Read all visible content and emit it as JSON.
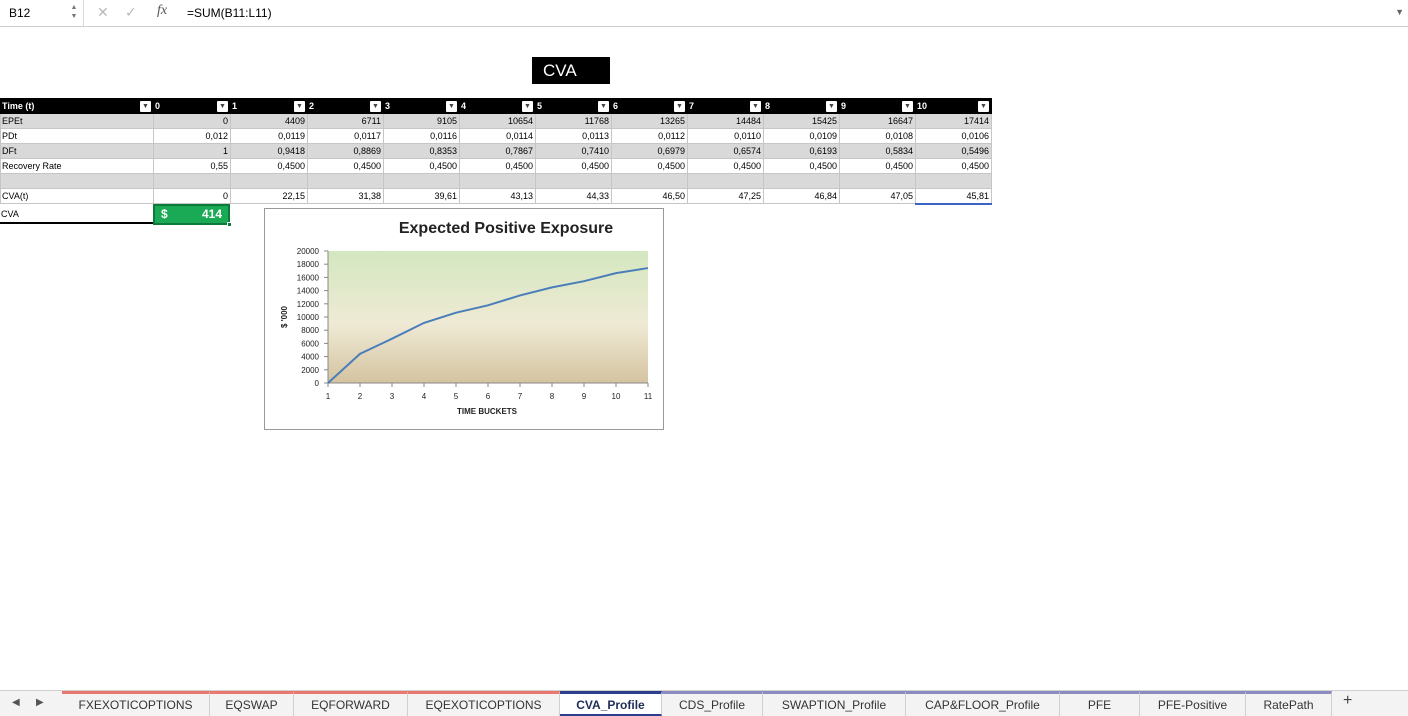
{
  "formula_bar": {
    "cell_ref": "B12",
    "formula": "=SUM(B11:L11)",
    "fx_label": "fx",
    "cancel_glyph": "✕",
    "confirm_glyph": "✓"
  },
  "title": "CVA",
  "table": {
    "header_label": "Time (t)",
    "header_values": [
      "0",
      "1",
      "2",
      "3",
      "4",
      "5",
      "6",
      "7",
      "8",
      "9",
      "10"
    ],
    "rows": [
      {
        "label": "EPEt",
        "values": [
          "0",
          "4409",
          "6711",
          "9105",
          "10654",
          "11768",
          "13265",
          "14484",
          "15425",
          "16647",
          "17414"
        ]
      },
      {
        "label": "PDt",
        "values": [
          "0,012",
          "0,0119",
          "0,0117",
          "0,0116",
          "0,0114",
          "0,0113",
          "0,0112",
          "0,0110",
          "0,0109",
          "0,0108",
          "0,0106"
        ]
      },
      {
        "label": "DFt",
        "values": [
          "1",
          "0,9418",
          "0,8869",
          "0,8353",
          "0,7867",
          "0,7410",
          "0,6979",
          "0,6574",
          "0,6193",
          "0,5834",
          "0,5496"
        ]
      },
      {
        "label": "Recovery Rate",
        "values": [
          "0,55",
          "0,4500",
          "0,4500",
          "0,4500",
          "0,4500",
          "0,4500",
          "0,4500",
          "0,4500",
          "0,4500",
          "0,4500",
          "0,4500"
        ]
      }
    ],
    "cva_t": {
      "label": "CVA(t)",
      "values": [
        "0",
        "22,15",
        "31,38",
        "39,61",
        "43,13",
        "44,33",
        "46,50",
        "47,25",
        "46,84",
        "47,05",
        "45,81"
      ]
    },
    "cva_total": {
      "label": "CVA",
      "currency": "$",
      "value": "414"
    }
  },
  "chart_data": {
    "type": "line",
    "title": "Expected Positive Exposure",
    "xlabel": "TIME BUCKETS",
    "ylabel": "$ '000",
    "x": [
      1,
      2,
      3,
      4,
      5,
      6,
      7,
      8,
      9,
      10,
      11
    ],
    "series": [
      {
        "values": [
          0,
          4409,
          6711,
          9105,
          10654,
          11768,
          13265,
          14484,
          15425,
          16647,
          17414
        ],
        "color": "#4a7ebb"
      }
    ],
    "y_ticks": [
      0,
      2000,
      4000,
      6000,
      8000,
      10000,
      12000,
      14000,
      16000,
      18000,
      20000
    ],
    "ylim": [
      0,
      20000
    ],
    "xlim": [
      1,
      11
    ],
    "grid": false,
    "legend": "none",
    "plot_background": "gradient green-to-tan"
  },
  "sheet_tabs": {
    "tabs": [
      {
        "label": "FXEXOTICOPTIONS",
        "color": "#e8786e",
        "active": false
      },
      {
        "label": "EQSWAP",
        "color": "#e8786e",
        "active": false
      },
      {
        "label": "EQFORWARD",
        "color": "#e8786e",
        "active": false
      },
      {
        "label": "EQEXOTICOPTIONS",
        "color": "#e8786e",
        "active": false
      },
      {
        "label": "CVA_Profile",
        "color": "#2b3f8f",
        "active": true
      },
      {
        "label": "CDS_Profile",
        "color": "#8a8cbf",
        "active": false
      },
      {
        "label": "SWAPTION_Profile",
        "color": "#8a8cbf",
        "active": false
      },
      {
        "label": "CAP&FLOOR_Profile",
        "color": "#8a8cbf",
        "active": false
      },
      {
        "label": "PFE",
        "color": "#8a8cbf",
        "active": false
      },
      {
        "label": "PFE-Positive",
        "color": "#8a8cbf",
        "active": false
      },
      {
        "label": "RatePath",
        "color": "#8a8cbf",
        "active": false
      }
    ],
    "add_label": "+"
  }
}
